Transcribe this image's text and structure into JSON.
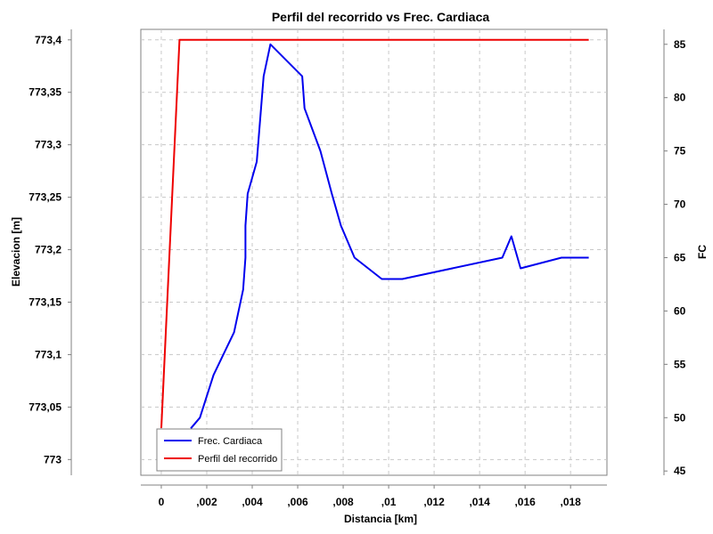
{
  "chart_data": {
    "type": "line",
    "title": "Perfil del recorrido vs Frec. Cardiaca",
    "xlabel": "Distancia [km]",
    "ylabel_left": "Elevacion [m]",
    "ylabel_right": "FC",
    "xlim": [
      -0.0009,
      0.0196
    ],
    "ylim_left": [
      772.985,
      773.41
    ],
    "ylim_right": [
      44.6,
      86.4
    ],
    "x_ticks": [
      {
        "value": 0,
        "label": "0"
      },
      {
        "value": 0.002,
        "label": ",002"
      },
      {
        "value": 0.004,
        "label": ",004"
      },
      {
        "value": 0.006,
        "label": ",006"
      },
      {
        "value": 0.008,
        "label": ",008"
      },
      {
        "value": 0.01,
        "label": ",01"
      },
      {
        "value": 0.012,
        "label": ",012"
      },
      {
        "value": 0.014,
        "label": ",014"
      },
      {
        "value": 0.016,
        "label": ",016"
      },
      {
        "value": 0.018,
        "label": ",018"
      }
    ],
    "y_left_ticks": [
      {
        "value": 773,
        "label": "773"
      },
      {
        "value": 773.05,
        "label": "773,05"
      },
      {
        "value": 773.1,
        "label": "773,1"
      },
      {
        "value": 773.15,
        "label": "773,15"
      },
      {
        "value": 773.2,
        "label": "773,2"
      },
      {
        "value": 773.25,
        "label": "773,25"
      },
      {
        "value": 773.3,
        "label": "773,3"
      },
      {
        "value": 773.35,
        "label": "773,35"
      },
      {
        "value": 773.4,
        "label": "773,4"
      }
    ],
    "y_right_ticks": [
      {
        "value": 45,
        "label": "45"
      },
      {
        "value": 50,
        "label": "50"
      },
      {
        "value": 55,
        "label": "55"
      },
      {
        "value": 60,
        "label": "60"
      },
      {
        "value": 65,
        "label": "65"
      },
      {
        "value": 70,
        "label": "70"
      },
      {
        "value": 75,
        "label": "75"
      },
      {
        "value": 80,
        "label": "80"
      },
      {
        "value": 85,
        "label": "85"
      }
    ],
    "grid": true,
    "legend_position": "bottom-left",
    "series": [
      {
        "name": "Frec. Cardiaca",
        "axis": "right",
        "color": "#0000ee",
        "x": [
          0.0013,
          0.0017,
          0.0023,
          0.0032,
          0.0036,
          0.0037,
          0.0037,
          0.0038,
          0.0042,
          0.0045,
          0.0048,
          0.0062,
          0.0063,
          0.007,
          0.0075,
          0.0079,
          0.0085,
          0.0097,
          0.0106,
          0.015,
          0.0154,
          0.0158,
          0.0176,
          0.0188
        ],
        "values": [
          49,
          50,
          54,
          58,
          62,
          65,
          68,
          71,
          74,
          82,
          85,
          82,
          79,
          75,
          71,
          68,
          65,
          63,
          63,
          65,
          67,
          64,
          65,
          65
        ]
      },
      {
        "name": "Perfil del recorrido",
        "axis": "left",
        "color": "#ee0000",
        "x": [
          0.0,
          0.0008,
          0.0188
        ],
        "values": [
          773.03,
          773.4,
          773.4
        ]
      }
    ]
  }
}
